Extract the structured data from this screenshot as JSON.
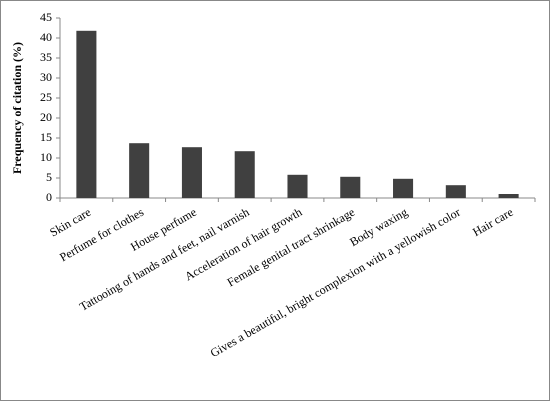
{
  "chart_data": {
    "type": "bar",
    "y_label": "Frequency of citation (%)",
    "categories": [
      "Skin care",
      "Perfume for clothes",
      "House perfume",
      "Tattooing of hands and feet, nail varnish",
      "Acceleration of hair growth",
      "Female genital tract shrinkage",
      "Body waxing",
      "Gives a beautiful, bright complexion with a yellowish color",
      "Hair care"
    ],
    "values": [
      41.8,
      13.7,
      12.7,
      11.7,
      5.8,
      5.3,
      4.8,
      3.2,
      1.0
    ],
    "color": "#404040",
    "ylim": [
      0,
      45
    ],
    "yticks": [
      0,
      5,
      10,
      15,
      20,
      25,
      30,
      35,
      40,
      45
    ],
    "grid": false
  }
}
